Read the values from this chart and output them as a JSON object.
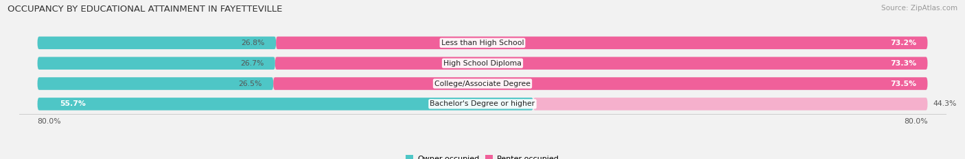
{
  "title": "OCCUPANCY BY EDUCATIONAL ATTAINMENT IN FAYETTEVILLE",
  "source": "Source: ZipAtlas.com",
  "categories": [
    "Less than High School",
    "High School Diploma",
    "College/Associate Degree",
    "Bachelor's Degree or higher"
  ],
  "owner_values": [
    26.8,
    26.7,
    26.5,
    55.7
  ],
  "renter_values": [
    73.2,
    73.3,
    73.5,
    44.3
  ],
  "owner_color": "#4ec6c6",
  "renter_color_top3": "#f0609a",
  "renter_color_bottom": "#f5b0cc",
  "bg_color": "#f2f2f2",
  "bar_bg_color": "#e4e4e4",
  "bar_bg_color_last": "#eeeeee",
  "title_fontsize": 9.5,
  "source_fontsize": 7.5,
  "label_fontsize": 7.8,
  "legend_fontsize": 8,
  "cat_fontsize": 7.8,
  "val_fontsize": 7.8
}
